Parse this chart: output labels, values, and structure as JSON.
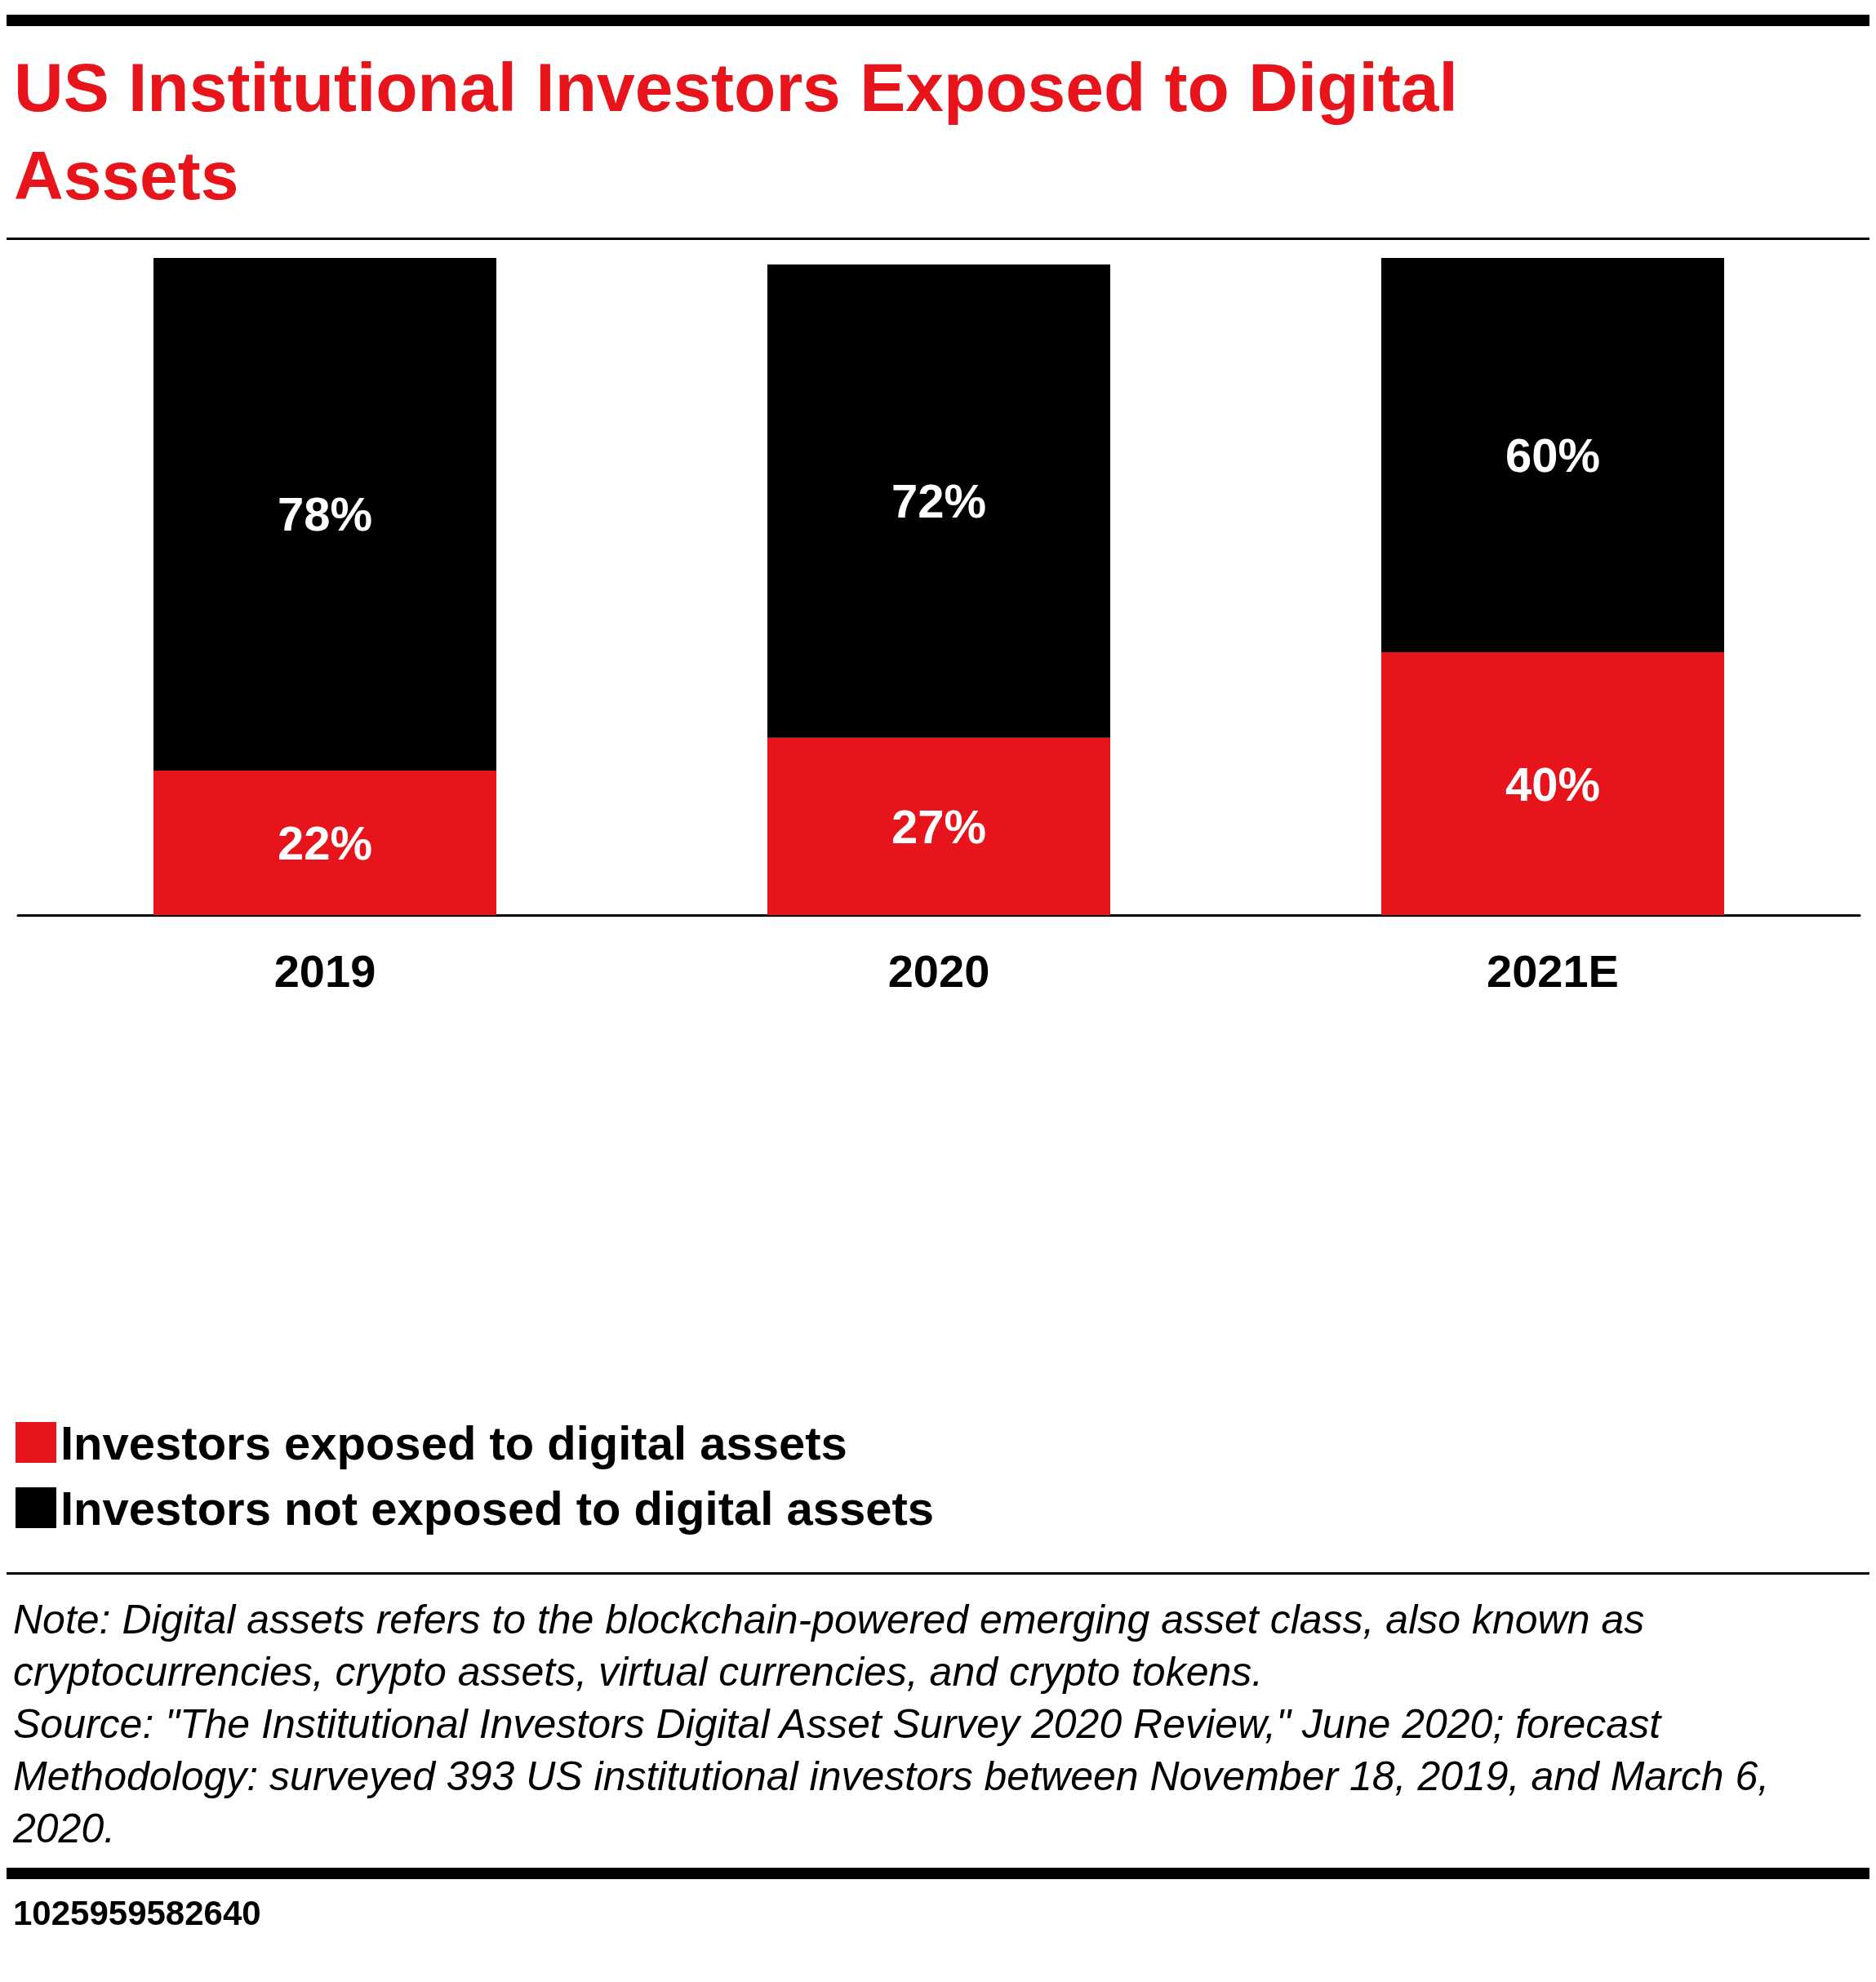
{
  "chart_data": {
    "type": "bar",
    "title": "US Institutional Investors Exposed to Digital Assets",
    "stacked": true,
    "categories": [
      "2019",
      "2020",
      "2021E"
    ],
    "series": [
      {
        "name": "Investors exposed to digital assets",
        "color": "#e8141c",
        "values": [
          22,
          27,
          40
        ],
        "value_labels": [
          "22%",
          "27%",
          "40%"
        ]
      },
      {
        "name": "Investors not exposed to digital assets",
        "color": "#000000",
        "values": [
          78,
          72,
          60
        ],
        "value_labels": [
          "78%",
          "72%",
          "60%"
        ]
      }
    ],
    "legend": "bottom left",
    "annotations": [
      "Note: Digital assets refers to the blockchain-powered emerging asset class, also known as cryptocurrencies, crypto assets, virtual currencies, and crypto tokens.",
      "Source: \"The Institutional Investors Digital Asset Survey 2020 Review,\" June 2020; forecast",
      "Methodology: surveyed 393 US institutional investors between November 18, 2019, and March 6, 2020.",
      "1025959582640"
    ]
  }
}
